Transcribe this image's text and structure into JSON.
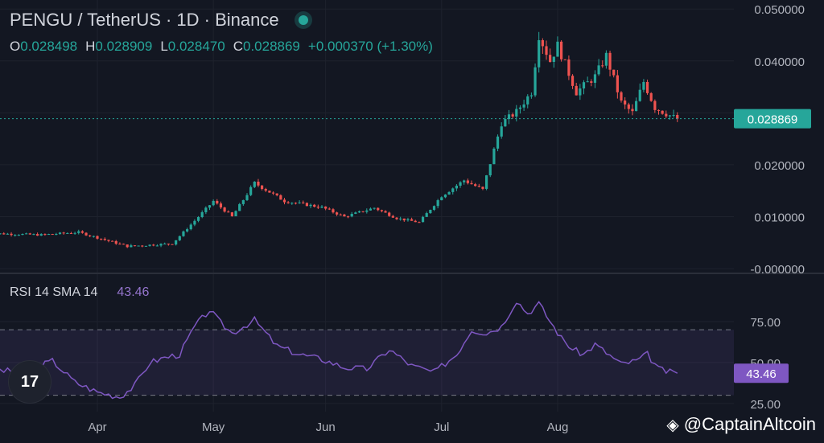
{
  "header": {
    "symbol_line": "PENGU / TetherUS · 1D · Binance",
    "ohlc": [
      {
        "key": "O",
        "value": "0.028498"
      },
      {
        "key": "H",
        "value": "0.028909"
      },
      {
        "key": "L",
        "value": "0.028470"
      },
      {
        "key": "C",
        "value": "0.028869"
      }
    ],
    "change": "+0.000370 (+1.30%)"
  },
  "colors": {
    "background": "#131722",
    "up": "#26a69a",
    "down": "#ef5350",
    "rsi": "#7e57c2",
    "rsi_band": "#7e57c2",
    "grid": "#1e222d",
    "axis_text": "#b2b5be"
  },
  "rsi_label": {
    "name": "RSI 14 SMA 14",
    "value": "43.46"
  },
  "watermark": {
    "text": "@CaptainAltcoin",
    "icon": "binance-diamond-icon"
  },
  "logo": {
    "text": "17",
    "icon": "tradingview-logo-icon"
  },
  "chart_data": {
    "type": "candlestick",
    "price_axis": {
      "ylim": [
        -0.0003,
        0.0505
      ],
      "ticks": [
        "0.050000",
        "0.040000",
        "0.030000",
        "0.020000",
        "0.010000",
        "-0.000000"
      ],
      "tick_values": [
        0.05,
        0.04,
        0.03,
        0.02,
        0.01,
        0.0
      ],
      "last_price": 0.028869,
      "last_price_label": "0.028869"
    },
    "rsi_axis": {
      "ylim": [
        20,
        102
      ],
      "ticks": [
        "75.00",
        "50.00",
        "25.00"
      ],
      "tick_values": [
        75,
        50,
        25
      ],
      "upper_band": 70,
      "lower_band": 30,
      "last_value": 43.46,
      "last_value_label": "43.46"
    },
    "x_axis": {
      "labels": [
        "Apr",
        "May",
        "Jun",
        "Jul",
        "Aug"
      ],
      "label_day_index": [
        30,
        61,
        91,
        122,
        153
      ]
    },
    "price_path": [
      [
        0,
        0.0068
      ],
      [
        15,
        0.0065
      ],
      [
        25,
        0.007
      ],
      [
        38,
        0.0043
      ],
      [
        50,
        0.0048
      ],
      [
        56,
        0.0092
      ],
      [
        61,
        0.013
      ],
      [
        66,
        0.01
      ],
      [
        72,
        0.0165
      ],
      [
        80,
        0.013
      ],
      [
        90,
        0.0118
      ],
      [
        96,
        0.01
      ],
      [
        104,
        0.0117
      ],
      [
        110,
        0.0097
      ],
      [
        116,
        0.0089
      ],
      [
        122,
        0.014
      ],
      [
        128,
        0.017
      ],
      [
        133,
        0.0152
      ],
      [
        138,
        0.028
      ],
      [
        142,
        0.0302
      ],
      [
        146,
        0.034
      ],
      [
        148,
        0.045
      ],
      [
        151,
        0.04
      ],
      [
        153,
        0.043
      ],
      [
        158,
        0.034
      ],
      [
        163,
        0.037
      ],
      [
        166,
        0.041
      ],
      [
        170,
        0.032
      ],
      [
        173,
        0.03
      ],
      [
        176,
        0.036
      ],
      [
        179,
        0.031
      ],
      [
        183,
        0.0295
      ],
      [
        185,
        0.0288
      ]
    ],
    "rsi_path": [
      [
        0,
        46
      ],
      [
        10,
        44
      ],
      [
        18,
        51
      ],
      [
        24,
        38
      ],
      [
        30,
        32
      ],
      [
        36,
        29
      ],
      [
        40,
        36
      ],
      [
        44,
        50
      ],
      [
        48,
        53
      ],
      [
        52,
        55
      ],
      [
        56,
        72
      ],
      [
        60,
        82
      ],
      [
        63,
        74
      ],
      [
        66,
        68
      ],
      [
        72,
        76
      ],
      [
        78,
        60
      ],
      [
        84,
        55
      ],
      [
        90,
        52
      ],
      [
        96,
        47
      ],
      [
        102,
        46
      ],
      [
        108,
        58
      ],
      [
        114,
        48
      ],
      [
        120,
        44
      ],
      [
        126,
        55
      ],
      [
        130,
        70
      ],
      [
        134,
        68
      ],
      [
        138,
        72
      ],
      [
        142,
        88
      ],
      [
        145,
        80
      ],
      [
        148,
        86
      ],
      [
        151,
        75
      ],
      [
        154,
        65
      ],
      [
        157,
        58
      ],
      [
        160,
        55
      ],
      [
        163,
        61
      ],
      [
        166,
        56
      ],
      [
        170,
        49
      ],
      [
        174,
        51
      ],
      [
        177,
        55
      ],
      [
        180,
        46
      ],
      [
        183,
        44
      ],
      [
        185,
        43.46
      ]
    ]
  }
}
